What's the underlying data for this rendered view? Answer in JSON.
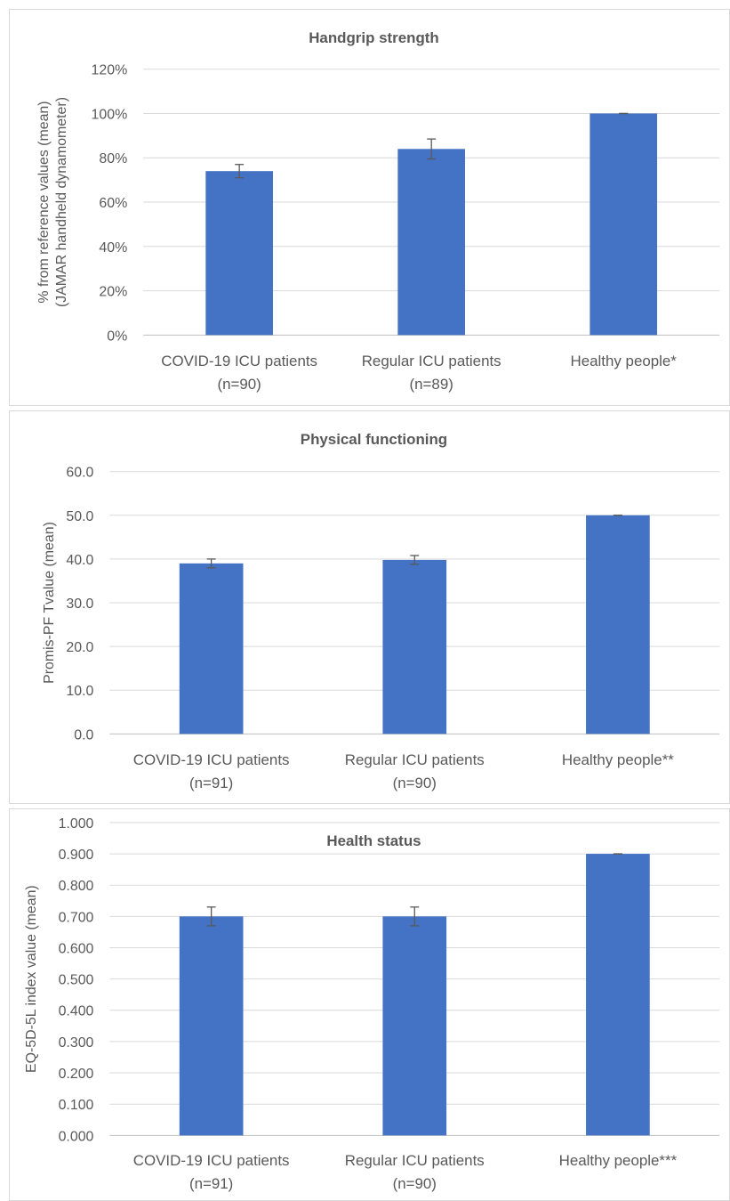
{
  "colors": {
    "bar": "#4472C4",
    "grid": "#d9d9d9",
    "axis": "#bfbfbf",
    "error_bar": "#595959",
    "text": "#595959"
  },
  "chart_data": [
    {
      "type": "bar",
      "title": "Handgrip strength",
      "ylabel_lines": [
        "% from reference values (mean)",
        "(JAMAR handheld dynamometer)"
      ],
      "ylim": [
        0,
        120
      ],
      "yticks": [
        0,
        20,
        40,
        60,
        80,
        100,
        120
      ],
      "ytick_labels": [
        "0%",
        "20%",
        "40%",
        "60%",
        "80%",
        "100%",
        "120%"
      ],
      "categories": [
        [
          "COVID-19 ICU patients",
          "(n=90)"
        ],
        [
          "Regular ICU patients",
          "(n=89)"
        ],
        [
          "Healthy people*"
        ]
      ],
      "values": [
        74,
        84,
        100
      ],
      "errors": [
        3,
        4.5,
        0
      ],
      "grid": true
    },
    {
      "type": "bar",
      "title": "Physical functioning",
      "ylabel_lines": [
        "Promis-PF  Tvalue (mean)"
      ],
      "ylim": [
        0,
        60
      ],
      "yticks": [
        0,
        10,
        20,
        30,
        40,
        50,
        60
      ],
      "ytick_labels": [
        "0.0",
        "10.0",
        "20.0",
        "30.0",
        "40.0",
        "50.0",
        "60.0"
      ],
      "categories": [
        [
          "COVID-19 ICU patients",
          "(n=91)"
        ],
        [
          "Regular ICU patients",
          "(n=90)"
        ],
        [
          "Healthy people**"
        ]
      ],
      "values": [
        39,
        39.8,
        50
      ],
      "errors": [
        1,
        1,
        0
      ],
      "grid": true
    },
    {
      "type": "bar",
      "title": "Health status",
      "ylabel_lines": [
        "EQ-5D-5L index value (mean)"
      ],
      "ylim": [
        0,
        1
      ],
      "yticks": [
        0,
        0.1,
        0.2,
        0.3,
        0.4,
        0.5,
        0.6,
        0.7,
        0.8,
        0.9,
        1.0
      ],
      "ytick_labels": [
        "0.000",
        "0.100",
        "0.200",
        "0.300",
        "0.400",
        "0.500",
        "0.600",
        "0.700",
        "0.800",
        "0.900",
        "1.000"
      ],
      "categories": [
        [
          "COVID-19 ICU patients",
          "(n=91)"
        ],
        [
          "Regular ICU patients",
          "(n=90)"
        ],
        [
          "Healthy people***"
        ]
      ],
      "values": [
        0.7,
        0.7,
        0.9
      ],
      "errors": [
        0.03,
        0.03,
        0
      ],
      "grid": true
    }
  ]
}
